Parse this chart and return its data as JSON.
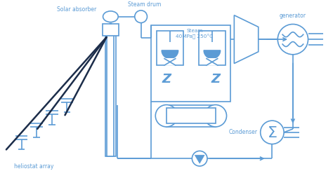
{
  "bg_color": "#ffffff",
  "lc": "#5b9bd5",
  "dlc": "#1c2d4a",
  "tc": "#5b9bd5",
  "fig_w": 4.74,
  "fig_h": 2.44,
  "dpi": 100,
  "labels": {
    "solar_absorber": "Solar absorber",
    "steam_drum": "Steam drum",
    "steam": "Steam\n40MPa， 250°C",
    "generator": "generator",
    "condenser": "Condenser",
    "heliostat": "heliostat array"
  }
}
